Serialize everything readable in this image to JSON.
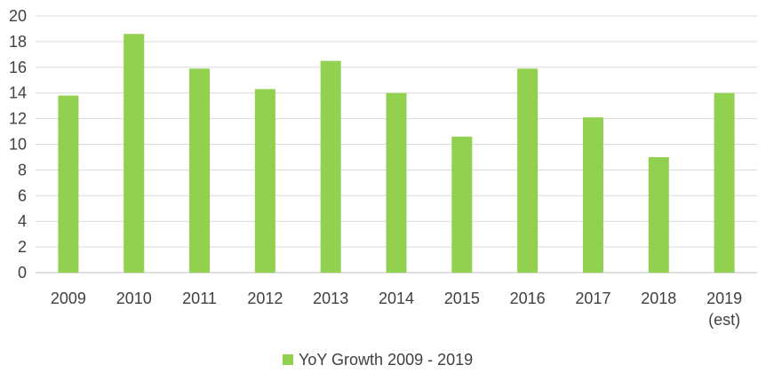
{
  "chart_data": {
    "type": "bar",
    "title": "",
    "xlabel": "",
    "ylabel": "",
    "categories": [
      "2009",
      "2010",
      "2011",
      "2012",
      "2013",
      "2014",
      "2015",
      "2016",
      "2017",
      "2018",
      "2019\n(est)"
    ],
    "series": [
      {
        "name": "YoY Growth 2009 - 2019",
        "values": [
          13.8,
          18.6,
          15.9,
          14.3,
          16.5,
          14.0,
          10.6,
          15.9,
          12.1,
          9.0,
          14.0
        ],
        "color": "#92d050"
      }
    ],
    "ylim": [
      0,
      20
    ],
    "yticks": [
      "0",
      "2",
      "4",
      "6",
      "8",
      "10",
      "12",
      "14",
      "16",
      "18",
      "20"
    ],
    "grid": true,
    "legend_position": "bottom"
  }
}
